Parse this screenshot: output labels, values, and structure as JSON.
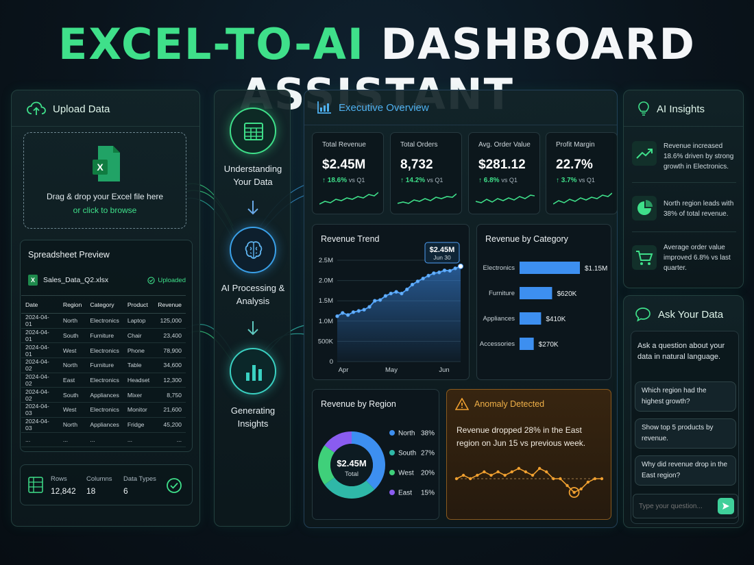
{
  "title": {
    "part1": "EXCEL-TO-AI",
    "part2": "DASHBOARD ASSISTANT"
  },
  "colors": {
    "accent_green": "#3fe08a",
    "accent_blue": "#4fb1f0",
    "anomaly_orange": "#f0a030"
  },
  "upload": {
    "heading": "Upload Data",
    "drop_text": "Drag & drop your Excel file here",
    "browse_text": "or click to browse",
    "icon": "excel-icon"
  },
  "preview": {
    "heading": "Spreadsheet Preview",
    "file_name": "Sales_Data_Q2.xlsx",
    "status": "Uploaded",
    "columns": [
      "Date",
      "Region",
      "Category",
      "Product",
      "Revenue"
    ],
    "rows": [
      [
        "2024-04-01",
        "North",
        "Electronics",
        "Laptop",
        "125,000"
      ],
      [
        "2024-04-01",
        "South",
        "Furniture",
        "Chair",
        "23,400"
      ],
      [
        "2024-04-01",
        "West",
        "Electronics",
        "Phone",
        "78,900"
      ],
      [
        "2024-04-02",
        "North",
        "Furniture",
        "Table",
        "34,600"
      ],
      [
        "2024-04-02",
        "East",
        "Electronics",
        "Headset",
        "12,300"
      ],
      [
        "2024-04-02",
        "South",
        "Appliances",
        "Mixer",
        "8,750"
      ],
      [
        "2024-04-03",
        "West",
        "Electronics",
        "Monitor",
        "21,600"
      ],
      [
        "2024-04-03",
        "North",
        "Appliances",
        "Fridge",
        "45,200"
      ],
      [
        "...",
        "...",
        "...",
        "...",
        "..."
      ]
    ]
  },
  "stats": {
    "rows_label": "Rows",
    "rows_value": "12,842",
    "columns_label": "Columns",
    "columns_value": "18",
    "types_label": "Data Types",
    "types_value": "6"
  },
  "pipeline": {
    "step1": "Understanding Your Data",
    "step2": "AI Processing & Analysis",
    "step3": "Generating Insights"
  },
  "overview": {
    "heading": "Executive Overview",
    "kpis": [
      {
        "label": "Total Revenue",
        "value": "$2.45M",
        "change": "18.6%",
        "vs": "vs Q1"
      },
      {
        "label": "Total Orders",
        "value": "8,732",
        "change": "14.2%",
        "vs": "vs Q1"
      },
      {
        "label": "Avg. Order Value",
        "value": "$281.12",
        "change": "6.8%",
        "vs": "vs Q1"
      },
      {
        "label": "Profit Margin",
        "value": "22.7%",
        "change": "3.7%",
        "vs": "vs Q1"
      }
    ]
  },
  "chart_data": [
    {
      "type": "area",
      "title": "Revenue Trend",
      "y_ticks": [
        "2.5M",
        "2.0M",
        "1.5M",
        "1.0M",
        "500K",
        "0"
      ],
      "x_ticks": [
        "Apr",
        "May",
        "Jun"
      ],
      "ylim": [
        0,
        2500000
      ],
      "values": [
        1.12,
        1.2,
        1.15,
        1.22,
        1.25,
        1.28,
        1.35,
        1.5,
        1.52,
        1.62,
        1.68,
        1.72,
        1.68,
        1.78,
        1.9,
        1.98,
        2.05,
        2.12,
        2.18,
        2.2,
        2.25,
        2.24,
        2.3,
        2.35
      ],
      "callout_value": "$2.45M",
      "callout_date": "Jun 30"
    },
    {
      "type": "bar",
      "title": "Revenue by Category",
      "categories": [
        "Electronics",
        "Furniture",
        "Appliances",
        "Accessories"
      ],
      "values": [
        1150000,
        620000,
        410000,
        270000
      ],
      "labels": [
        "$1.15M",
        "$620K",
        "$410K",
        "$270K"
      ]
    },
    {
      "type": "pie",
      "title": "Revenue by Region",
      "center_value": "$2.45M",
      "center_label": "Total",
      "categories": [
        "North",
        "South",
        "West",
        "East"
      ],
      "values": [
        38,
        27,
        20,
        15
      ],
      "labels": [
        "38%",
        "27%",
        "20%",
        "15%"
      ],
      "colors": [
        "#3d8ff0",
        "#2fb8a8",
        "#3fd07a",
        "#8a5cf0"
      ]
    },
    {
      "type": "line",
      "title": "Anomaly Detected",
      "values": [
        6,
        7,
        6,
        7,
        8,
        7,
        8,
        7,
        8,
        9,
        8,
        7,
        9,
        8,
        6,
        6,
        4,
        2,
        3,
        5,
        6,
        6
      ],
      "anomaly_index": 17
    }
  ],
  "anomaly": {
    "heading": "Anomaly Detected",
    "text": "Revenue dropped 28% in the East region on Jun 15 vs previous week."
  },
  "insights": {
    "heading": "AI Insights",
    "items": [
      {
        "text": "Revenue increased 18.6% driven by strong growth in Electronics."
      },
      {
        "text": "North region leads with 38% of total revenue."
      },
      {
        "text": "Average order value improved 6.8% vs last quarter."
      }
    ]
  },
  "ask": {
    "heading": "Ask Your Data",
    "intro": "Ask a question about your data in natural language.",
    "suggestions": [
      "Which region had the highest growth?",
      "Show top 5 products by revenue.",
      "Why did revenue drop in the East region?"
    ],
    "placeholder": "Type your question..."
  }
}
